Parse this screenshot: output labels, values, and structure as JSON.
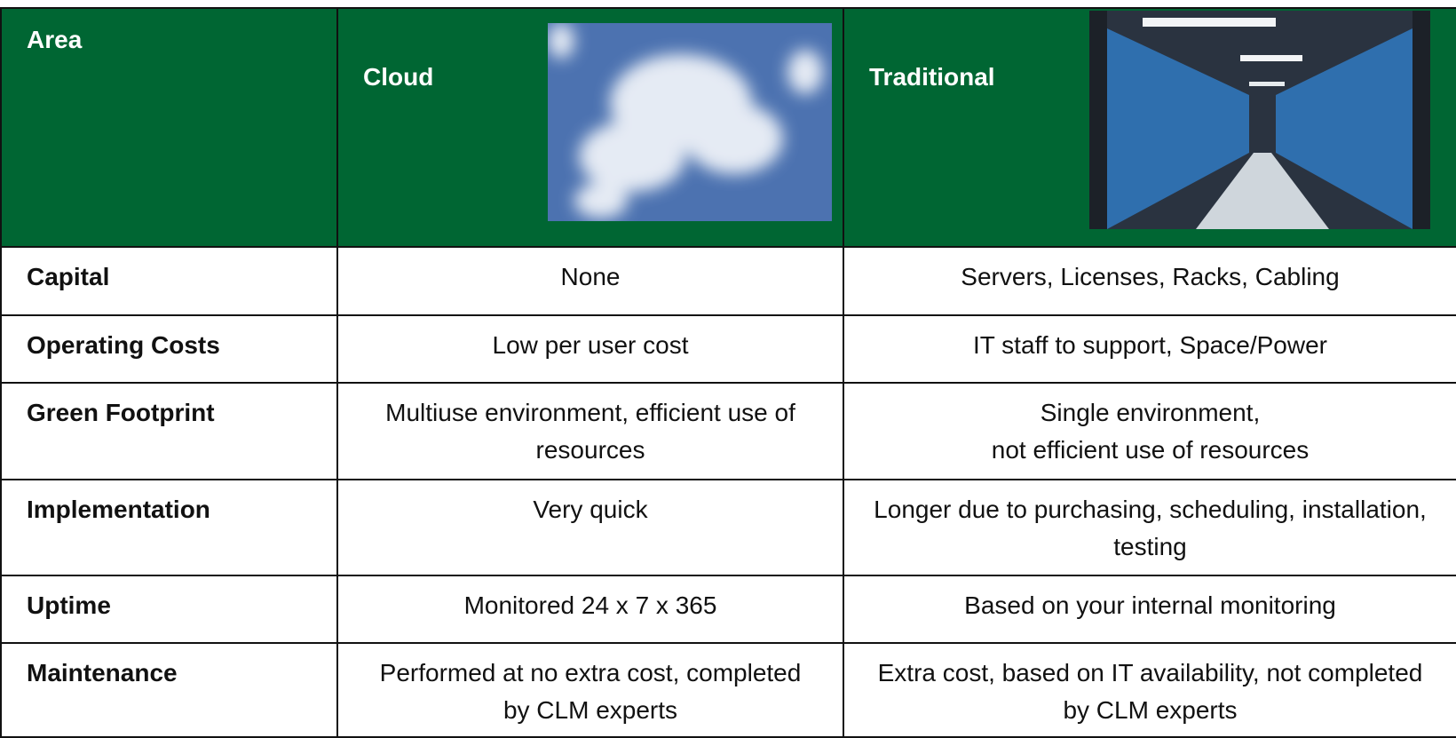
{
  "table": {
    "header": [
      "Area",
      "Cloud",
      "Traditional"
    ],
    "rows": [
      [
        "Capital",
        "None",
        "Servers, Licenses, Racks, Cabling"
      ],
      [
        "Operating Costs",
        "Low per user cost",
        "IT staff to support, Space/Power"
      ],
      [
        "Green Footprint",
        "Multiuse environment, efficient use of resources",
        "Single environment,\nnot efficient use of resources"
      ],
      [
        "Implementation",
        "Very quick",
        "Longer due to purchasing, scheduling, installation, testing"
      ],
      [
        "Uptime",
        "Monitored 24 x 7 x 365",
        "Based on your internal monitoring"
      ],
      [
        "Maintenance",
        "Performed at no extra cost, completed by CLM experts",
        "Extra cost, based on IT availability, not completed by CLM experts"
      ]
    ]
  }
}
